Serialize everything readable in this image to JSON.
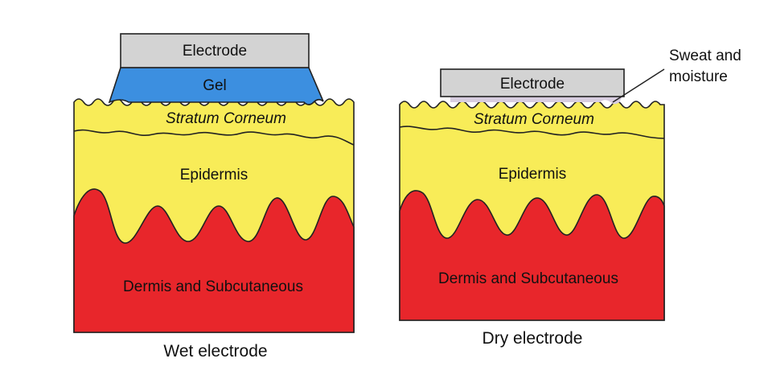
{
  "colors": {
    "electrode": "#d3d3d3",
    "gel": "#3c8fe0",
    "epidermis": "#f8ec58",
    "dermis": "#e8262b",
    "outline": "#222222",
    "moisture": "#d8cde0"
  },
  "wet": {
    "electrode_label": "Electrode",
    "gel_label": "Gel",
    "stratum_label": "Stratum Corneum",
    "epidermis_label": "Epidermis",
    "dermis_label": "Dermis and Subcutaneous",
    "caption": "Wet electrode"
  },
  "dry": {
    "electrode_label": "Electrode",
    "stratum_label": "Stratum Corneum",
    "epidermis_label": "Epidermis",
    "dermis_label": "Dermis and Subcutaneous",
    "caption": "Dry electrode",
    "annotation_line1": "Sweat and",
    "annotation_line2": "moisture"
  }
}
